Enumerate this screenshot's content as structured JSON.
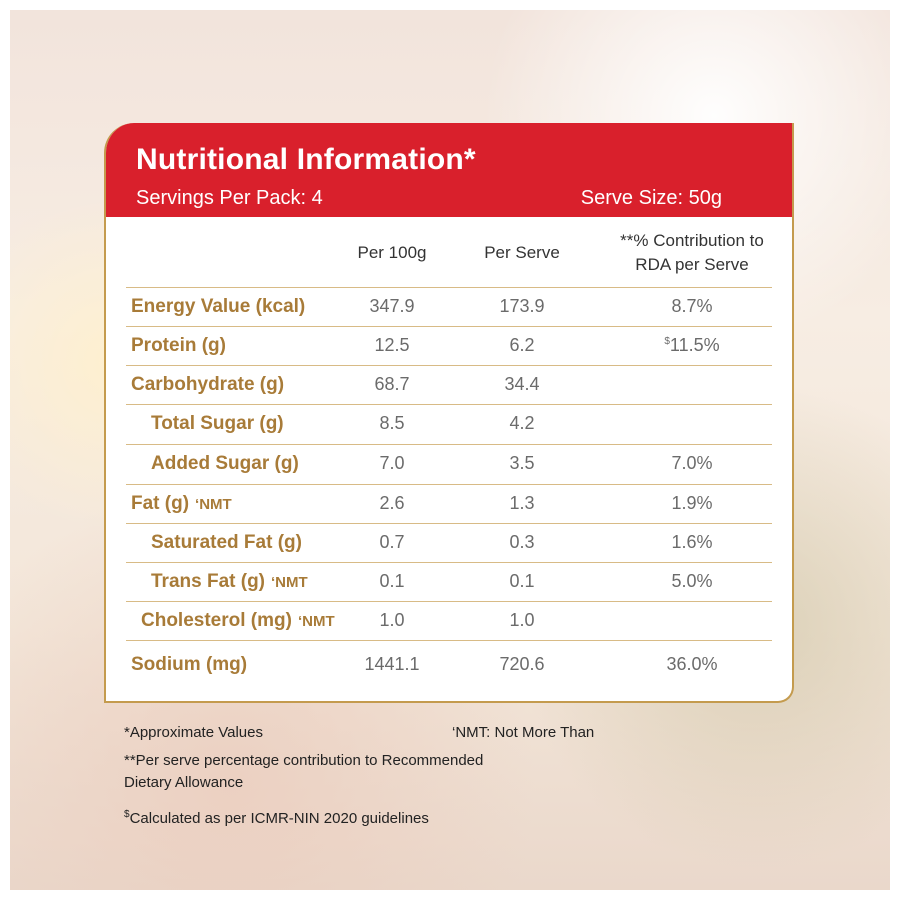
{
  "header": {
    "title": "Nutritional Information*",
    "servings": "Servings Per Pack: 4",
    "serve_size": "Serve Size: 50g"
  },
  "columns": {
    "per_100g": "Per 100g",
    "per_serve": "Per Serve",
    "rda_line1": "**% Contribution to",
    "rda_line2": "RDA per Serve"
  },
  "rows": [
    {
      "label": "Energy Value (kcal)",
      "nmt": "",
      "per100": "347.9",
      "serve": "173.9",
      "rda": "8.7%",
      "rda_prefix": ""
    },
    {
      "label": "Protein (g)",
      "nmt": "",
      "per100": "12.5",
      "serve": "6.2",
      "rda": "11.5%",
      "rda_prefix": "$"
    },
    {
      "label": "Carbohydrate (g)",
      "nmt": "",
      "per100": "68.7",
      "serve": "34.4",
      "rda": "",
      "rda_prefix": ""
    },
    {
      "label": "Total Sugar (g)",
      "nmt": "",
      "per100": "8.5",
      "serve": "4.2",
      "rda": "",
      "rda_prefix": ""
    },
    {
      "label": "Added Sugar (g)",
      "nmt": "",
      "per100": "7.0",
      "serve": "3.5",
      "rda": "7.0%",
      "rda_prefix": ""
    },
    {
      "label": "Fat (g)",
      "nmt": "‘NMT",
      "per100": "2.6",
      "serve": "1.3",
      "rda": "1.9%",
      "rda_prefix": ""
    },
    {
      "label": "Saturated Fat (g)",
      "nmt": "",
      "per100": "0.7",
      "serve": "0.3",
      "rda": "1.6%",
      "rda_prefix": ""
    },
    {
      "label": "Trans Fat (g)",
      "nmt": "‘NMT",
      "per100": "0.1",
      "serve": "0.1",
      "rda": "5.0%",
      "rda_prefix": ""
    },
    {
      "label": "Cholesterol (mg)",
      "nmt": "‘NMT",
      "per100": "1.0",
      "serve": "1.0",
      "rda": "",
      "rda_prefix": ""
    },
    {
      "label": "Sodium (mg)",
      "nmt": "",
      "per100": "1441.1",
      "serve": "720.6",
      "rda": "36.0%",
      "rda_prefix": ""
    }
  ],
  "footnotes": {
    "approx": "*Approximate Values",
    "nmt": "‘NMT: Not More Than",
    "rda_line1": "**Per serve percentage contribution to Recommended",
    "rda_line2": "Dietary Allowance",
    "icmr_prefix": "$",
    "icmr": "Calculated as per ICMR-NIN 2020 guidelines"
  }
}
